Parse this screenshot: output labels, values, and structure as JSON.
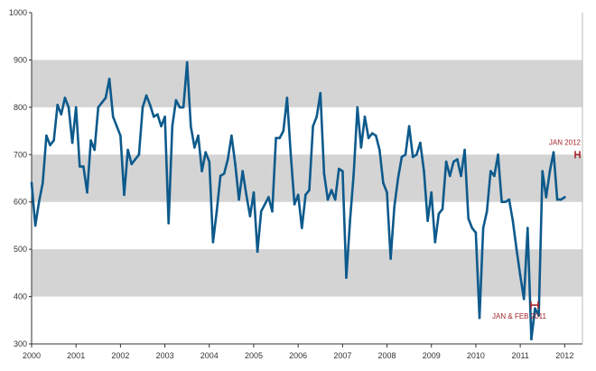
{
  "colors": {
    "line": "#0d5a8c",
    "band": "#d4d4d4",
    "annotation": "#a3232a",
    "axis": "#333333"
  },
  "chart_data": {
    "type": "line",
    "title": "",
    "xlabel": "",
    "ylabel": "",
    "ylim": [
      300,
      1000
    ],
    "xlim": [
      "2000-01",
      "2012-05"
    ],
    "grid": "alternating horizontal bands every 100",
    "legend": "none",
    "y_ticks": [
      "300",
      "400",
      "500",
      "600",
      "700",
      "800",
      "900",
      "1000"
    ],
    "x_ticks": [
      "2000",
      "2001",
      "2002",
      "2003",
      "2004",
      "2005",
      "2006",
      "2007",
      "2008",
      "2009",
      "2010",
      "2011",
      "2012"
    ],
    "series": [
      {
        "start": "2000-01",
        "frequency": "monthly",
        "values": [
          640,
          550,
          600,
          640,
          740,
          720,
          730,
          805,
          785,
          820,
          800,
          725,
          800,
          675,
          675,
          620,
          730,
          710,
          800,
          810,
          820,
          860,
          780,
          760,
          740,
          615,
          710,
          680,
          690,
          700,
          800,
          825,
          805,
          780,
          785,
          760,
          780,
          555,
          760,
          815,
          800,
          800,
          895,
          760,
          715,
          740,
          665,
          705,
          685,
          515,
          580,
          655,
          660,
          690,
          740,
          680,
          605,
          665,
          615,
          570,
          620,
          495,
          580,
          595,
          610,
          580,
          735,
          735,
          750,
          820,
          700,
          595,
          615,
          545,
          615,
          625,
          760,
          780,
          830,
          660,
          605,
          625,
          605,
          670,
          665,
          440,
          560,
          660,
          800,
          715,
          780,
          735,
          745,
          740,
          710,
          640,
          620,
          480,
          590,
          650,
          695,
          700,
          760,
          695,
          700,
          725,
          665,
          560,
          620,
          515,
          575,
          585,
          685,
          655,
          685,
          690,
          655,
          710,
          565,
          545,
          535,
          355,
          545,
          580,
          665,
          655,
          700,
          600,
          600,
          605,
          560,
          500,
          445,
          395,
          545,
          310,
          375,
          360,
          665,
          610,
          665,
          705,
          605,
          605,
          610
        ]
      }
    ],
    "annotations": [
      {
        "text": "JAN 2012",
        "date": "2012-01",
        "value": 700
      },
      {
        "text": "JAN & FEB 2011",
        "date": "2011-01",
        "value": 382
      }
    ]
  }
}
